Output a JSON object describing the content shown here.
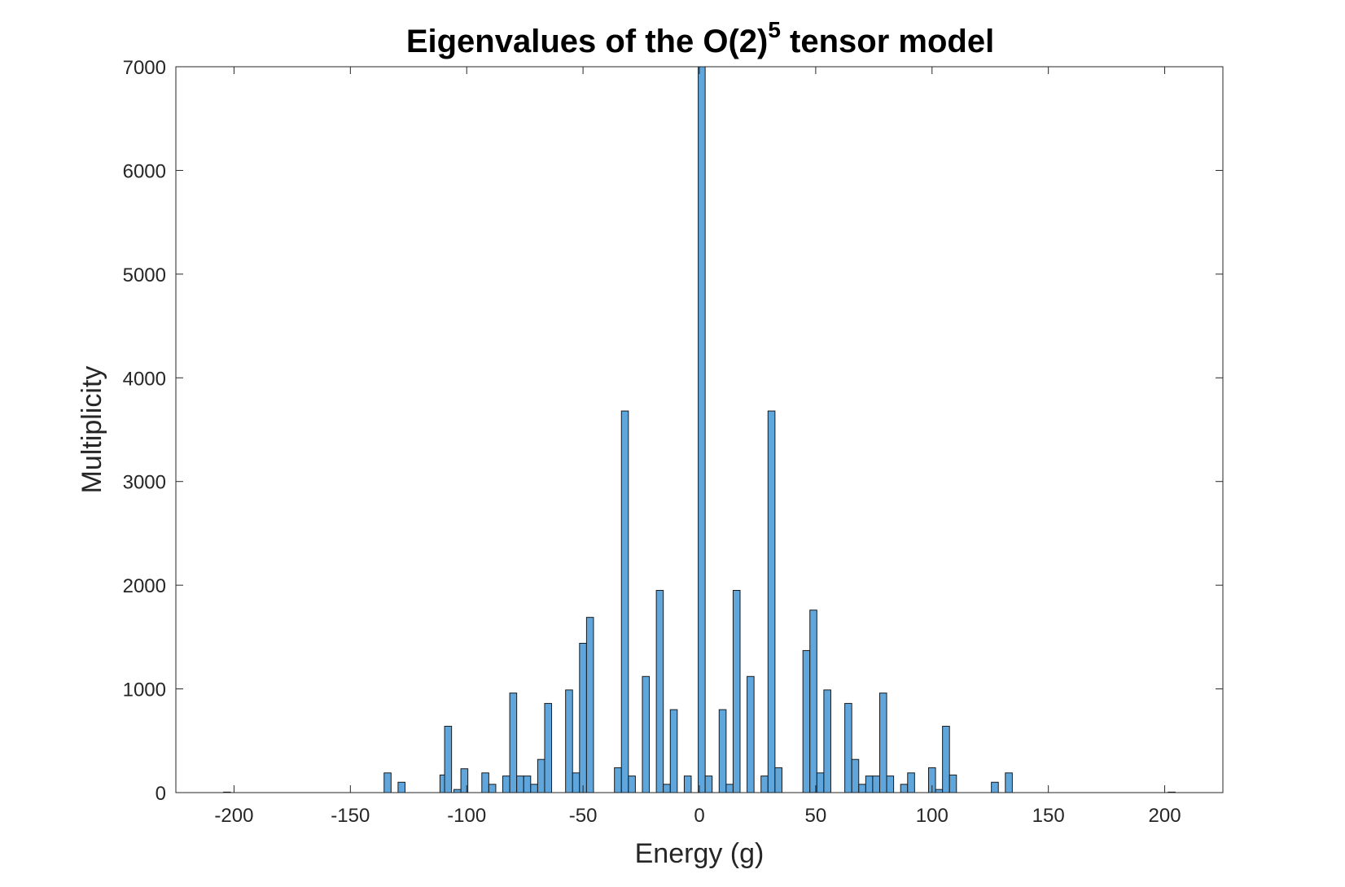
{
  "chart_data": {
    "type": "bar",
    "title": "Eigenvalues of the O(2)",
    "title_superscript": "5",
    "title_suffix": " tensor model",
    "xlabel": "Energy (g)",
    "ylabel": "Multiplicity",
    "xlim": [
      -225,
      225
    ],
    "ylim": [
      0,
      7000
    ],
    "xticks": [
      "-200",
      "-150",
      "-100",
      "-50",
      "0",
      "50",
      "100",
      "150",
      "200"
    ],
    "xtick_values": [
      -200,
      -150,
      -100,
      -50,
      0,
      50,
      100,
      150,
      200
    ],
    "yticks": [
      "0",
      "1000",
      "2000",
      "3000",
      "4000",
      "5000",
      "6000",
      "7000"
    ],
    "ytick_values": [
      0,
      1000,
      2000,
      3000,
      4000,
      5000,
      6000,
      7000
    ],
    "bar_width": 3,
    "grid": false,
    "bar_color": "#5fa6dc",
    "x": [
      -203,
      -134,
      -128,
      -110,
      -108,
      -104,
      -101,
      -92,
      -89,
      -83,
      -80,
      -77,
      -74,
      -71,
      -68,
      -65,
      -56,
      -53,
      -50,
      -47,
      -35,
      -32,
      -29,
      -23,
      -17,
      -14,
      -11,
      -5,
      1,
      4,
      10,
      13,
      16,
      22,
      28,
      31,
      34,
      46,
      49,
      52,
      55,
      64,
      67,
      70,
      73,
      76,
      79,
      82,
      88,
      91,
      100,
      103,
      106,
      109,
      127,
      133,
      203
    ],
    "values": [
      5,
      190,
      100,
      170,
      640,
      30,
      230,
      190,
      80,
      160,
      960,
      160,
      160,
      80,
      320,
      860,
      990,
      190,
      1440,
      1690,
      240,
      3680,
      160,
      1120,
      1950,
      80,
      800,
      160,
      7000,
      160,
      800,
      80,
      1950,
      1120,
      160,
      3680,
      240,
      1370,
      1760,
      190,
      990,
      860,
      320,
      80,
      160,
      160,
      960,
      160,
      80,
      190,
      240,
      30,
      640,
      170,
      100,
      190,
      5
    ]
  }
}
